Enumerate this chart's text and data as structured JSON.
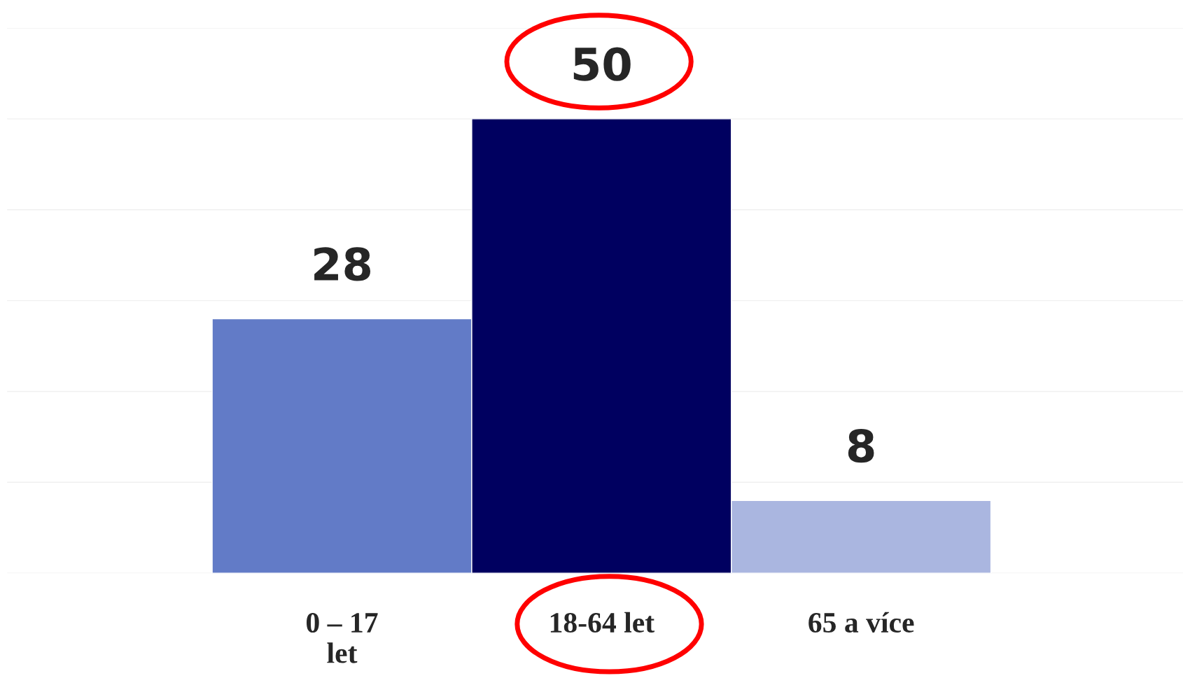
{
  "chart_data": {
    "type": "bar",
    "categories": [
      "0 – 17\nlet",
      "18-64 let",
      "65 a více"
    ],
    "values": [
      28,
      50,
      8
    ],
    "colors": [
      "#627bc7",
      "#000060",
      "#aab6e0"
    ],
    "data_labels": true,
    "ylim": [
      0,
      60
    ],
    "yticks": [
      {
        "value": 0,
        "label": null
      },
      {
        "value": 10,
        "label": null
      },
      {
        "value": 20,
        "label": null
      },
      {
        "value": 30,
        "label": null
      },
      {
        "value": 40,
        "label": null
      },
      {
        "value": 50,
        "label": null
      },
      {
        "value": 60,
        "label": null
      }
    ],
    "tick_labels": "x",
    "grid": "y"
  }
}
